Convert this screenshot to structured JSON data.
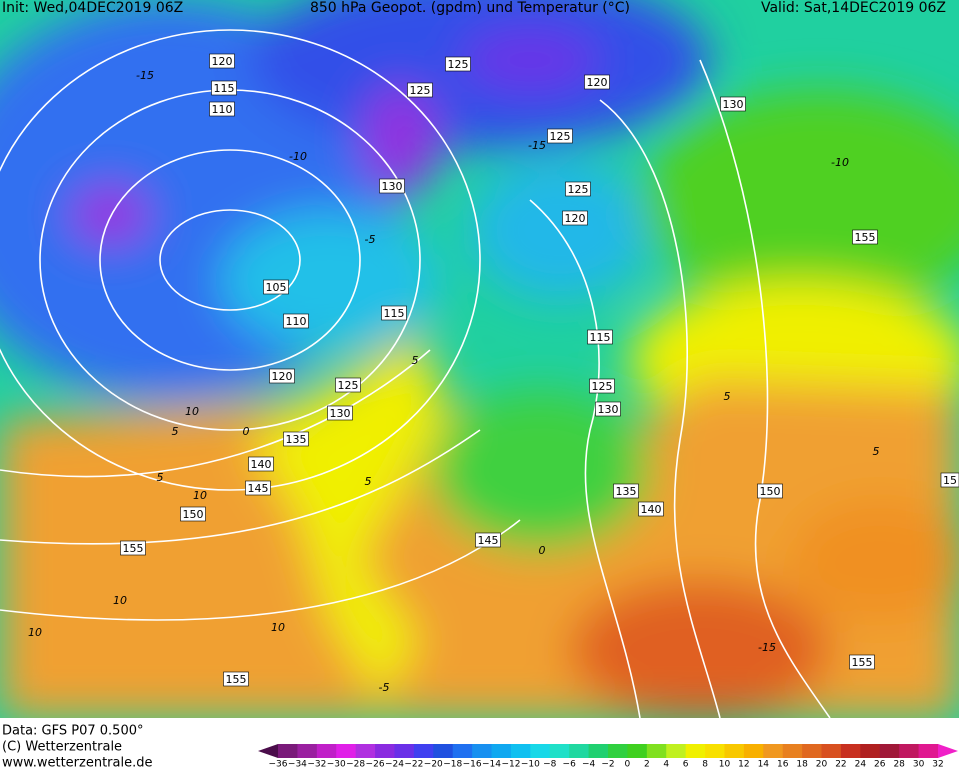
{
  "header": {
    "init": "Init: Wed,04DEC2019 06Z",
    "title": "850 hPa Geopot. (gpdm) und Temperatur (°C)",
    "valid": "Valid: Sat,14DEC2019 06Z"
  },
  "map": {
    "geopotential_labels": [
      "120",
      "115",
      "110",
      "125",
      "125",
      "120",
      "130",
      "125",
      "130",
      "125",
      "120",
      "155",
      "105",
      "115",
      "110",
      "115",
      "120",
      "125",
      "125",
      "130",
      "130",
      "135",
      "140",
      "145",
      "135",
      "150",
      "140",
      "150",
      "145",
      "155",
      "155",
      "155",
      "15"
    ],
    "temperature_labels": [
      "-15",
      "-10",
      "-5",
      "-15",
      "-10",
      "5",
      "10",
      "5",
      "0",
      "5",
      "10",
      "5",
      "0",
      "10",
      "10",
      "10",
      "-5",
      "-15",
      "5",
      "5"
    ]
  },
  "footer": {
    "source": "Data: GFS P07 0.500°",
    "copyright": "(C) Wetterzentrale",
    "url": "www.wetterzentrale.de"
  },
  "legend": {
    "labels": [
      "−36",
      "−34",
      "−32",
      "−30",
      "−28",
      "−26",
      "−24",
      "−22",
      "−20",
      "−18",
      "−16",
      "−14",
      "−12",
      "−10",
      "−8",
      "−6",
      "−4",
      "−2",
      "0",
      "2",
      "4",
      "6",
      "8",
      "10",
      "12",
      "14",
      "16",
      "18",
      "20",
      "22",
      "24",
      "26",
      "28",
      "30",
      "32"
    ],
    "colors": [
      "#4b0d4b",
      "#7a1a7a",
      "#9a20a0",
      "#c020c8",
      "#e020e8",
      "#b030e0",
      "#8a2be0",
      "#6a30e8",
      "#4040f0",
      "#2050e0",
      "#2070f0",
      "#1890f0",
      "#10a8f0",
      "#10c0f0",
      "#18d8e8",
      "#20e0c8",
      "#20d8a0",
      "#20d070",
      "#30d040",
      "#40d020",
      "#80e020",
      "#c0f020",
      "#f0f000",
      "#f8e000",
      "#f8c800",
      "#f8b000",
      "#f09820",
      "#e88020",
      "#e06820",
      "#d85020",
      "#c83020",
      "#b02020",
      "#a01838",
      "#c01860",
      "#e01890",
      "#f020c8"
    ]
  }
}
